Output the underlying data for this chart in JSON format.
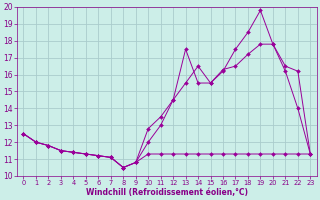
{
  "xlabel": "Windchill (Refroidissement éolien,°C)",
  "background_color": "#cceee8",
  "grid_color": "#aacccc",
  "line_color": "#990099",
  "xlim": [
    -0.5,
    23.5
  ],
  "ylim": [
    10,
    20
  ],
  "yticks": [
    10,
    11,
    12,
    13,
    14,
    15,
    16,
    17,
    18,
    19,
    20
  ],
  "xticks": [
    0,
    1,
    2,
    3,
    4,
    5,
    6,
    7,
    8,
    9,
    10,
    11,
    12,
    13,
    14,
    15,
    16,
    17,
    18,
    19,
    20,
    21,
    22,
    23
  ],
  "line1_x": [
    0,
    1,
    2,
    3,
    4,
    5,
    6,
    7,
    8,
    9,
    10,
    11,
    12,
    13,
    14,
    15,
    16,
    17,
    18,
    19,
    20,
    21,
    22,
    23
  ],
  "line1_y": [
    12.5,
    12.0,
    11.8,
    11.5,
    11.4,
    11.3,
    11.2,
    11.1,
    10.5,
    10.8,
    11.3,
    11.3,
    11.3,
    11.3,
    11.3,
    11.3,
    11.3,
    11.3,
    11.3,
    11.3,
    11.3,
    11.3,
    11.3,
    11.3
  ],
  "line2_x": [
    0,
    1,
    2,
    3,
    4,
    5,
    6,
    7,
    8,
    9,
    10,
    11,
    12,
    13,
    14,
    15,
    16,
    17,
    18,
    19,
    20,
    21,
    22,
    23
  ],
  "line2_y": [
    12.5,
    12.0,
    11.8,
    11.5,
    11.4,
    11.3,
    11.2,
    11.1,
    10.5,
    10.8,
    12.8,
    13.5,
    14.5,
    17.5,
    15.5,
    15.5,
    16.3,
    16.5,
    17.2,
    17.8,
    17.8,
    16.2,
    14.0,
    11.3
  ],
  "line3_x": [
    0,
    1,
    2,
    3,
    4,
    5,
    6,
    7,
    8,
    9,
    10,
    11,
    12,
    13,
    14,
    15,
    16,
    17,
    18,
    19,
    20,
    21,
    22,
    23
  ],
  "line3_y": [
    12.5,
    12.0,
    11.8,
    11.5,
    11.4,
    11.3,
    11.2,
    11.1,
    10.5,
    10.8,
    12.0,
    13.0,
    14.5,
    15.5,
    16.5,
    15.5,
    16.2,
    17.5,
    18.5,
    19.8,
    17.8,
    16.5,
    16.2,
    11.3
  ]
}
